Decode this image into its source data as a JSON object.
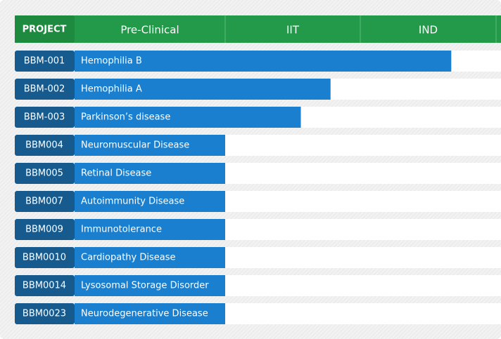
{
  "chart_data": {
    "type": "pipeline",
    "header": "PROJECT",
    "stages": [
      "Pre-Clinical",
      "IIT",
      "IND"
    ],
    "projects": [
      "BBM-001",
      "BBM-002",
      "BBM-003",
      "BBM004",
      "BBM005",
      "BBM007",
      "BBM009",
      "BBM0010",
      "BBM0014",
      "BBM0023"
    ],
    "indications": [
      "Hemophilia B",
      "Hemophilia A",
      "Parkinson’s disease",
      "Neuromuscular Disease",
      "Retinal Disease",
      "Autoimmunity Disease",
      "Immunotolerance",
      "Cardiopathy Disease",
      "Lysosomal Storage Disorder",
      "Neurodegenerative Disease"
    ],
    "values": [
      2.67,
      1.78,
      1.56,
      1,
      1,
      1,
      1,
      1,
      1,
      1
    ],
    "xlim": [
      0,
      3
    ],
    "color": "#1a7fcf"
  }
}
